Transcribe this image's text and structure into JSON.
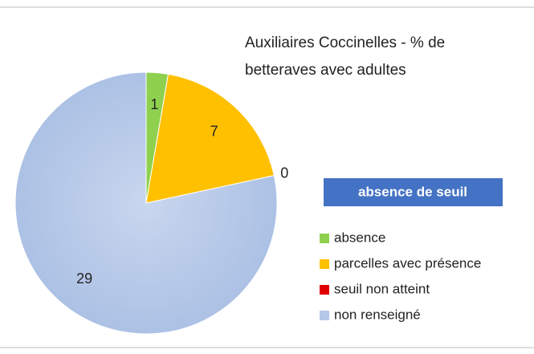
{
  "chart_data": {
    "type": "pie",
    "title": [
      "Auxiliaires  Coccinelles - % de",
      "betteraves  avec adultes"
    ],
    "annotation": "absence de seuil",
    "categories": [
      "absence",
      "parcelles avec présence",
      "seuil non atteint",
      "non renseigné"
    ],
    "values": [
      1,
      7,
      0,
      29
    ],
    "colors": [
      "#8fd14f",
      "#ffc000",
      "#e00000",
      "#b4c7e7"
    ],
    "legend": "right"
  }
}
